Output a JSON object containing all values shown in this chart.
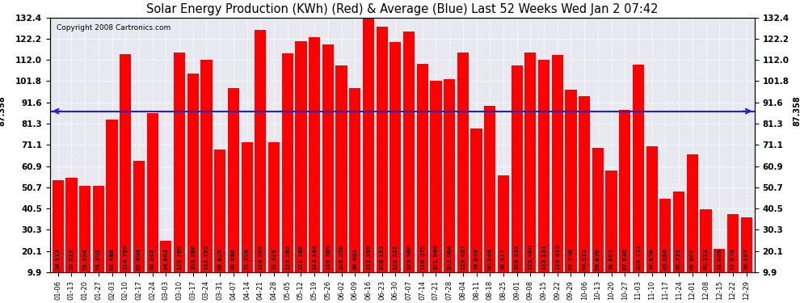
{
  "title": "Solar Energy Production (KWh) (Red) & Average (Blue) Last 52 Weeks Wed Jan 2 07:42",
  "copyright": "Copyright 2008 Cartronics.com",
  "average_value": 87.358,
  "bar_color": "#ff0000",
  "avg_line_color": "#2222cc",
  "background_color": "#ffffff",
  "plot_bg_color": "#e8e8f0",
  "grid_color": "#ffffff",
  "ylim_min": 9.9,
  "ylim_max": 132.4,
  "yticks": [
    9.9,
    20.1,
    30.3,
    40.5,
    50.7,
    60.9,
    71.1,
    81.3,
    91.6,
    101.8,
    112.0,
    122.2,
    132.4
  ],
  "dates": [
    "01-06",
    "01-13",
    "01-20",
    "01-27",
    "02-03",
    "02-10",
    "02-17",
    "02-24",
    "03-03",
    "03-10",
    "03-17",
    "03-24",
    "03-31",
    "04-07",
    "04-14",
    "04-21",
    "04-28",
    "05-05",
    "05-12",
    "05-19",
    "05-26",
    "06-02",
    "06-09",
    "06-16",
    "06-23",
    "06-30",
    "07-07",
    "07-14",
    "07-21",
    "07-28",
    "08-04",
    "08-11",
    "08-18",
    "08-25",
    "09-01",
    "09-08",
    "09-15",
    "09-22",
    "09-29",
    "10-06",
    "10-13",
    "10-20",
    "10-27",
    "11-03",
    "11-10",
    "11-17",
    "11-24",
    "12-01",
    "12-08",
    "12-15",
    "12-22",
    "12-29"
  ],
  "values": [
    54.113,
    55.513,
    51.354,
    51.392,
    83.486,
    114.799,
    63.404,
    86.245,
    24.863,
    115.709,
    105.286,
    112.193,
    68.825,
    98.486,
    72.399,
    126.593,
    72.325,
    115.262,
    121.168,
    123.148,
    119.389,
    109.256,
    98.401,
    132.399,
    128.151,
    120.522,
    125.5,
    110.075,
    101.946,
    102.604,
    115.457,
    79.049,
    90.049,
    56.317,
    109.233,
    115.4,
    112.131,
    114.415,
    97.738,
    94.512,
    69.67,
    58.891,
    87.93,
    109.711,
    70.636,
    45.084,
    48.731,
    66.667,
    40.212,
    21.009,
    37.97,
    36.297
  ]
}
